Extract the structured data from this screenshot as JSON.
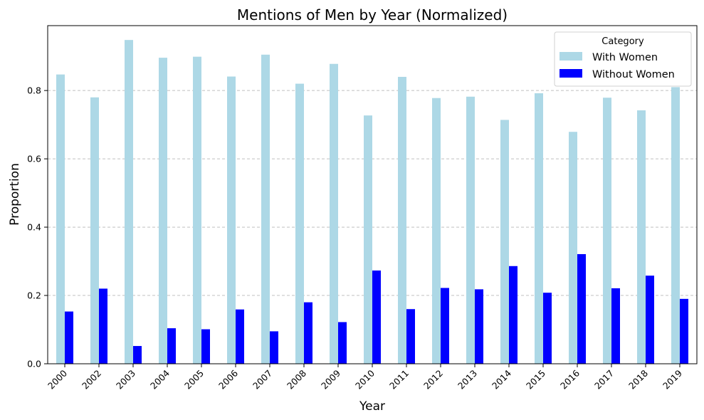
{
  "chart_data": {
    "type": "bar",
    "title": "Mentions of Men by Year (Normalized)",
    "xlabel": "Year",
    "ylabel": "Proportion",
    "categories": [
      "2000",
      "2002",
      "2003",
      "2004",
      "2005",
      "2006",
      "2007",
      "2008",
      "2009",
      "2010",
      "2011",
      "2012",
      "2013",
      "2014",
      "2015",
      "2016",
      "2017",
      "2018",
      "2019"
    ],
    "series": [
      {
        "name": "With Women",
        "color": "#add8e6",
        "values": [
          0.847,
          0.78,
          0.948,
          0.896,
          0.899,
          0.841,
          0.905,
          0.82,
          0.878,
          0.727,
          0.84,
          0.778,
          0.782,
          0.714,
          0.792,
          0.679,
          0.779,
          0.742,
          0.81
        ]
      },
      {
        "name": "Without Women",
        "color": "#0000ff",
        "values": [
          0.153,
          0.22,
          0.052,
          0.104,
          0.101,
          0.159,
          0.095,
          0.18,
          0.122,
          0.273,
          0.16,
          0.222,
          0.218,
          0.286,
          0.208,
          0.321,
          0.221,
          0.258,
          0.19
        ]
      }
    ],
    "ylim": [
      0,
      0.99
    ],
    "yticks": [
      0.0,
      0.2,
      0.4,
      0.6,
      0.8
    ],
    "ytick_labels": [
      "0.0",
      "0.2",
      "0.4",
      "0.6",
      "0.8"
    ],
    "grid": "y-dashed",
    "legend": {
      "title": "Category",
      "placement": "top-right"
    }
  }
}
